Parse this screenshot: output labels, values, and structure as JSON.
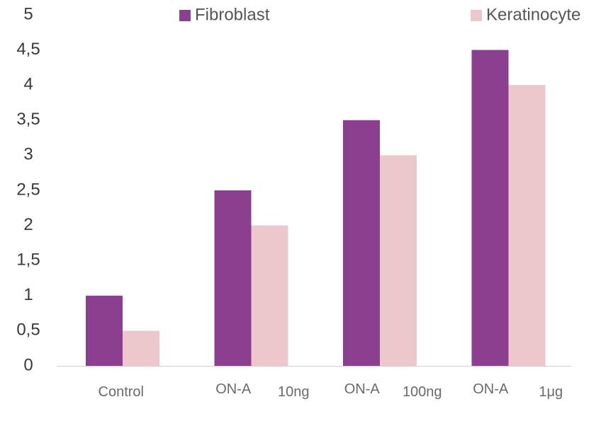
{
  "chart_data": {
    "type": "bar",
    "categories": [
      "Control",
      "ON-A 10ng",
      "ON-A 100ng",
      "ON-A 1μg"
    ],
    "category_labels": [
      [
        "Control"
      ],
      [
        "ON-A",
        "10ng"
      ],
      [
        "ON-A",
        "100ng"
      ],
      [
        "ON-A",
        "1μg"
      ]
    ],
    "series": [
      {
        "name": "Fibroblast",
        "values": [
          1.0,
          2.5,
          3.5,
          4.5
        ],
        "color": "#8b3f8f"
      },
      {
        "name": "Keratinocyte",
        "values": [
          0.5,
          2.0,
          3.0,
          4.0
        ],
        "color": "#ecc7cc"
      }
    ],
    "yticks": [
      "0",
      "0,5",
      "1",
      "1,5",
      "2",
      "2,5",
      "3",
      "3,5",
      "4",
      "4,5",
      "5"
    ],
    "ylim": [
      0,
      5
    ],
    "grid": false,
    "legend": "top",
    "title": "",
    "xlabel": "",
    "ylabel": ""
  }
}
